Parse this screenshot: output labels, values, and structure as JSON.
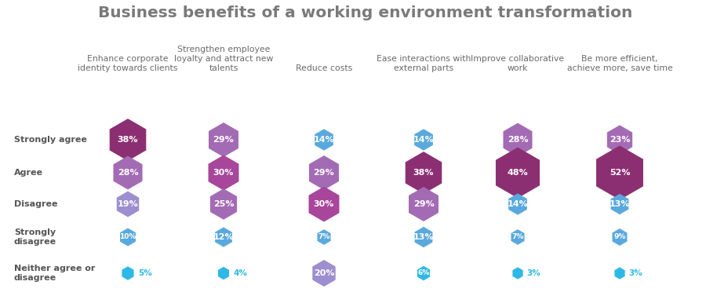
{
  "chart_data": {
    "type": "hexagon_matrix",
    "title": "Business benefits of a working environment transformation",
    "categories": [
      "Enhance corporate identity towards clients",
      "Strengthen employee loyalty and attract new talents",
      "Reduce costs",
      "Ease interactions with external parts",
      "Improve collaborative work",
      "Be more efficient, achieve more, save time"
    ],
    "data_labels": true,
    "series": [
      {
        "name": "Strongly agree",
        "values": [
          38,
          29,
          14,
          14,
          28,
          23
        ],
        "value_labels": [
          "38%",
          "29%",
          "14%",
          "14%",
          "28%",
          "23%"
        ],
        "colors": [
          "#8c2f72",
          "#a46bb5",
          "#5aa9dd",
          "#5aa9dd",
          "#a46bb5",
          "#a46bb5"
        ]
      },
      {
        "name": "Agree",
        "values": [
          28,
          30,
          29,
          38,
          48,
          52
        ],
        "value_labels": [
          "28%",
          "30%",
          "29%",
          "38%",
          "48%",
          "52%"
        ],
        "colors": [
          "#a46bb5",
          "#a8469b",
          "#a46bb5",
          "#8c2f72",
          "#8c2f72",
          "#8c2f72"
        ]
      },
      {
        "name": "Disagree",
        "values": [
          19,
          25,
          30,
          29,
          14,
          13
        ],
        "value_labels": [
          "19%",
          "25%",
          "30%",
          "29%",
          "14%",
          "13%"
        ],
        "colors": [
          "#9c8ecf",
          "#a46bb5",
          "#a8469b",
          "#a46bb5",
          "#5aa9dd",
          "#5aa9dd"
        ]
      },
      {
        "name": "Strongly disagree",
        "values": [
          10,
          12,
          7,
          13,
          7,
          9
        ],
        "value_labels": [
          "10%",
          "12%",
          "7%",
          "13%",
          "7%",
          "9%"
        ],
        "colors": [
          "#5aa9dd",
          "#5aa9dd",
          "#5aa9dd",
          "#5aa9dd",
          "#5aa9dd",
          "#5aa9dd"
        ]
      },
      {
        "name": "Neither agree or disagree",
        "values": [
          5,
          4,
          20,
          6,
          3,
          3
        ],
        "value_labels": [
          "5%",
          "4%",
          "20%",
          "6%",
          "3%",
          "3%"
        ],
        "colors": [
          "#2eb8e6",
          "#2eb8e6",
          "#9c8ecf",
          "#2eb8e6",
          "#2eb8e6",
          "#2eb8e6"
        ]
      }
    ]
  }
}
